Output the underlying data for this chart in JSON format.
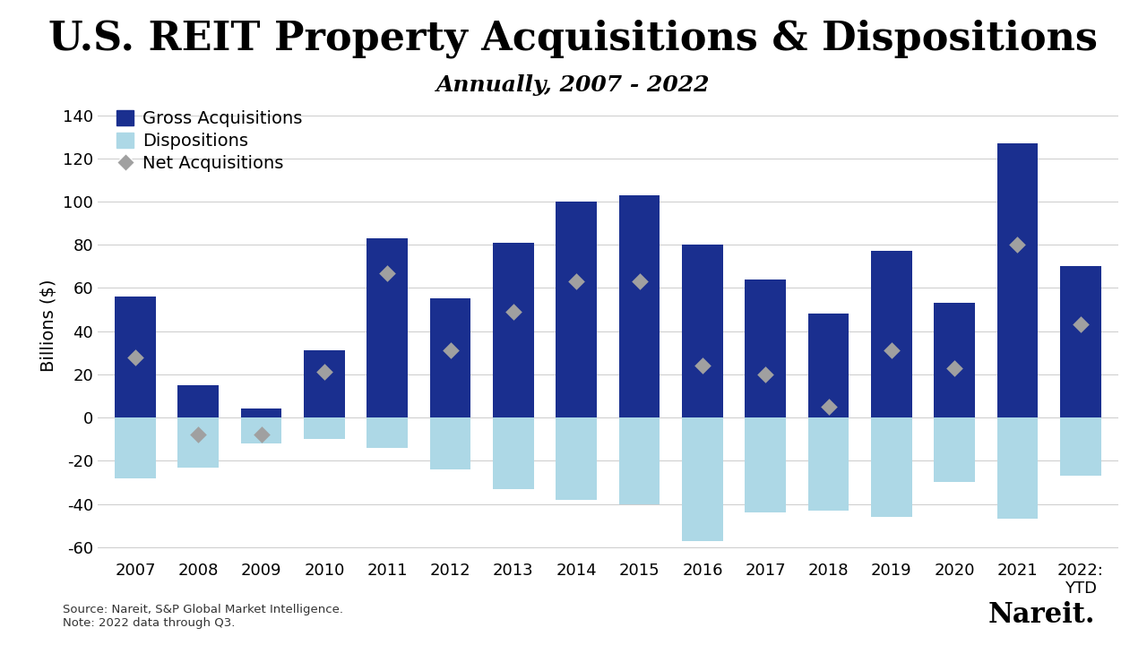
{
  "title": "U.S. REIT Property Acquisitions & Dispositions",
  "subtitle": "Annually, 2007 - 2022",
  "years": [
    "2007",
    "2008",
    "2009",
    "2010",
    "2011",
    "2012",
    "2013",
    "2014",
    "2015",
    "2016",
    "2017",
    "2018",
    "2019",
    "2020",
    "2021",
    "2022:\nYTD"
  ],
  "gross_acquisitions": [
    56,
    15,
    4,
    31,
    83,
    55,
    81,
    100,
    103,
    80,
    64,
    48,
    77,
    53,
    127,
    70
  ],
  "dispositions": [
    -28,
    -23,
    -12,
    -10,
    -14,
    -24,
    -33,
    -38,
    -40,
    -57,
    -44,
    -43,
    -46,
    -30,
    -47,
    -27
  ],
  "net_acquisitions": [
    28,
    -8,
    -8,
    21,
    67,
    31,
    49,
    63,
    63,
    24,
    20,
    5,
    31,
    23,
    80,
    43
  ],
  "gross_color": "#1a2f8f",
  "disp_color": "#add8e6",
  "net_color": "#a0a0a0",
  "background_color": "#ffffff",
  "ylim": [
    -65,
    150
  ],
  "yticks": [
    -60,
    -40,
    -20,
    0,
    20,
    40,
    60,
    80,
    100,
    120,
    140
  ],
  "ylabel": "Billions ($)",
  "source_text": "Source: Nareit, S&P Global Market Intelligence.\nNote: 2022 data through Q3.",
  "nareit_text": "Nareit’",
  "title_fontsize": 32,
  "subtitle_fontsize": 18,
  "tick_fontsize": 13,
  "label_fontsize": 14,
  "legend_fontsize": 14,
  "bar_width": 0.65
}
